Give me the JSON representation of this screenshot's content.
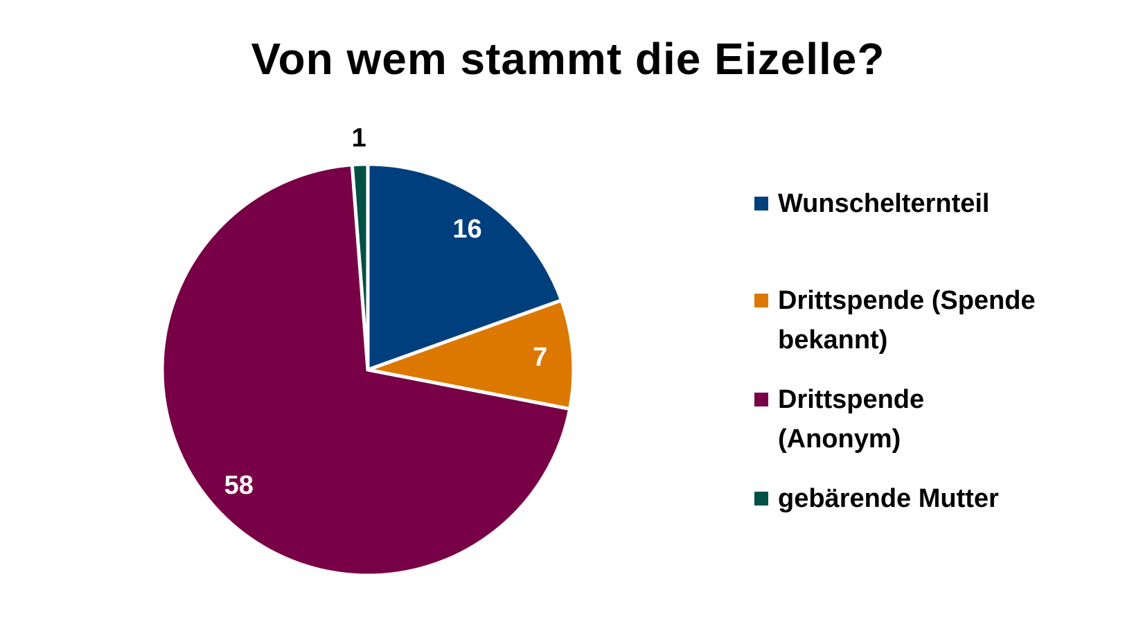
{
  "chart_data": {
    "type": "pie",
    "title": "Von wem stammt die Eizelle?",
    "start": "12 o'clock, clockwise",
    "legend_position": "right",
    "slices": [
      {
        "label": "Wunschelternteil",
        "value": 16,
        "color": "#003F7D",
        "label_color": "#FFFFFF"
      },
      {
        "label": "Drittspende (Spende bekannt)",
        "value": 7,
        "color": "#DC7800",
        "label_color": "#FFFFFF"
      },
      {
        "label": "Drittspende (Anonym)",
        "value": 58,
        "color": "#780046",
        "label_color": "#FFFFFF"
      },
      {
        "label": "gebärende Mutter",
        "value": 1,
        "color": "#005046",
        "label_color": "#000000"
      }
    ]
  }
}
